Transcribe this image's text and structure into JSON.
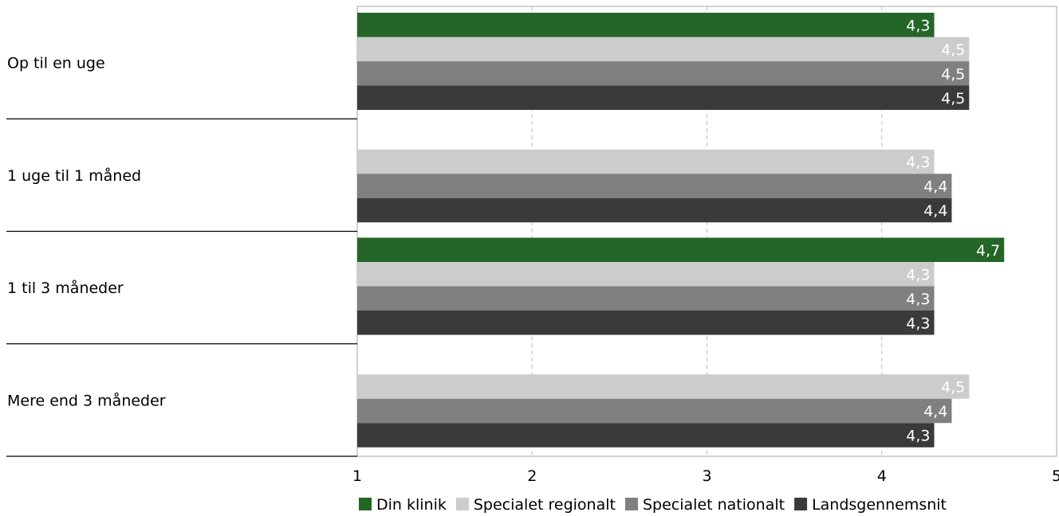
{
  "chart_data": {
    "type": "bar",
    "orientation": "horizontal",
    "title": "",
    "xlabel": "",
    "ylabel": "",
    "xlim": [
      1,
      5
    ],
    "ticks": [
      1,
      2,
      3,
      4,
      5
    ],
    "grid": "vertical-dashed",
    "legend_position": "bottom",
    "categories": [
      "Op til en uge",
      "1 uge til 1 måned",
      "1 til 3 måneder",
      "Mere end 3 måneder"
    ],
    "series": [
      {
        "name": "Din klinik",
        "color": "#246627",
        "value_label_color": "#ffffff",
        "values": [
          4.3,
          null,
          4.7,
          null
        ],
        "labels": [
          "4,3",
          "",
          "4,7",
          ""
        ]
      },
      {
        "name": "Specialet regionalt",
        "color": "#cccccc",
        "value_label_color": "#ffffff",
        "values": [
          4.5,
          4.3,
          4.3,
          4.5
        ],
        "labels": [
          "4,5",
          "4,3",
          "4,3",
          "4,5"
        ]
      },
      {
        "name": "Specialet nationalt",
        "color": "#808080",
        "value_label_color": "#ffffff",
        "values": [
          4.5,
          4.4,
          4.3,
          4.4
        ],
        "labels": [
          "4,5",
          "4,4",
          "4,3",
          "4,4"
        ]
      },
      {
        "name": "Landsgennemsnit",
        "color": "#3a3a3a",
        "value_label_color": "#ffffff",
        "values": [
          4.5,
          4.4,
          4.3,
          4.3
        ],
        "labels": [
          "4,5",
          "4,4",
          "4,3",
          "4,3"
        ]
      }
    ]
  }
}
